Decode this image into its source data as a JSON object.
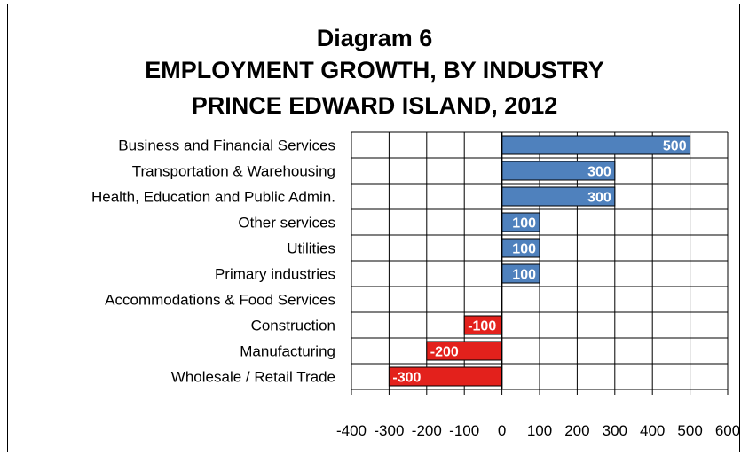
{
  "title": {
    "line1": "Diagram 6",
    "line2": "EMPLOYMENT GROWTH, BY INDUSTRY",
    "line3": "PRINCE EDWARD ISLAND, 2012"
  },
  "colors": {
    "positive": "#4F81BD",
    "negative": "#E3211C",
    "grid": "#000000",
    "text": "#000000"
  },
  "chart_data": {
    "type": "bar",
    "orientation": "horizontal",
    "title": "Diagram 6 EMPLOYMENT GROWTH, BY INDUSTRY PRINCE EDWARD ISLAND, 2012",
    "categories": [
      "Business and Financial Services",
      "Transportation & Warehousing",
      "Health, Education and Public Admin.",
      "Other services",
      "Utilities",
      "Primary industries",
      "Accommodations & Food Services",
      "Construction",
      "Manufacturing",
      "Wholesale / Retail Trade"
    ],
    "values": [
      500,
      300,
      300,
      100,
      100,
      100,
      0,
      -100,
      -200,
      -300
    ],
    "data_labels": [
      "500",
      "300",
      "300",
      "100",
      "100",
      "100",
      "",
      "-100",
      "-200",
      "-300"
    ],
    "xlim": [
      -400,
      600
    ],
    "x_ticks": [
      -400,
      -300,
      -200,
      -100,
      0,
      100,
      200,
      300,
      400,
      500,
      600
    ],
    "x_tick_labels": [
      "-400",
      "-300",
      "-200",
      "-100",
      "0",
      "100",
      "200",
      "300",
      "400",
      "500",
      "600"
    ],
    "grid": true,
    "legend": "none",
    "xlabel": "",
    "ylabel": ""
  }
}
